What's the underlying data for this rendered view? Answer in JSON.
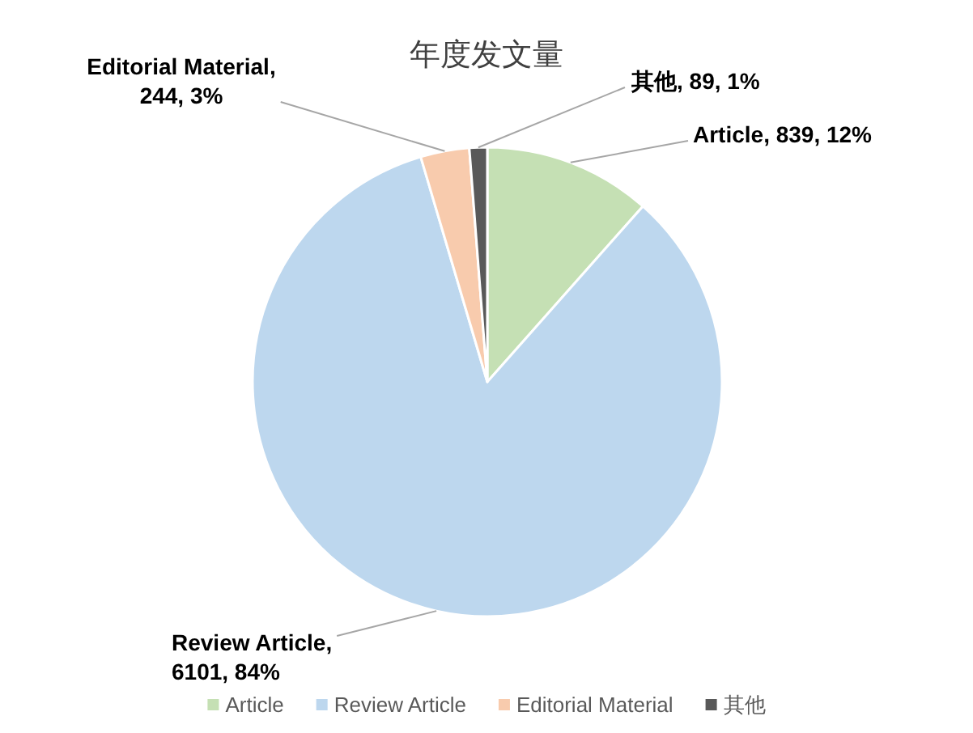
{
  "chart_data": {
    "type": "pie",
    "title": "年度发文量",
    "categories": [
      "Article",
      "Review Article",
      "Editorial Material",
      "其他"
    ],
    "values": [
      839,
      6101,
      244,
      89
    ],
    "colors": [
      "#c5e0b4",
      "#bdd7ee",
      "#f8cbad",
      "#595959"
    ],
    "value_labels": [
      "Article, 839, 12%",
      "Review Article, 6101, 84%",
      "Editorial Material, 244, 3%",
      "其他, 89, 1%"
    ],
    "legend": "bottom"
  }
}
